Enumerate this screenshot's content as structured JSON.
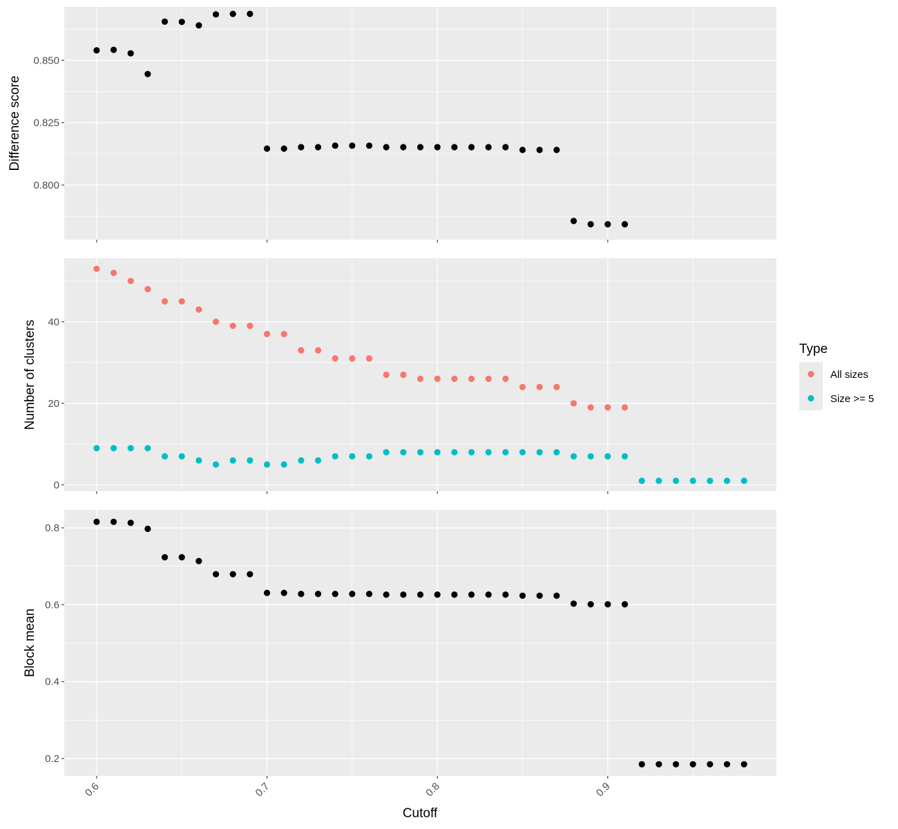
{
  "chart_data": {
    "type": "scatter",
    "x_axis": {
      "label": "Cutoff",
      "range": [
        0.581,
        0.999
      ],
      "ticks": [
        0.6,
        0.7,
        0.8,
        0.9
      ],
      "tick_labels": [
        "0.6",
        "0.7",
        "0.8",
        "0.9"
      ]
    },
    "panels": [
      {
        "id": "difference",
        "ylabel": "Difference score",
        "ylim": [
          0.7781,
          0.8714
        ],
        "yticks": [
          0.8,
          0.825,
          0.85
        ],
        "ytick_labels": [
          "0.800",
          "0.825",
          "0.850"
        ],
        "series": [
          {
            "color": "#000000",
            "points": [
              [
                0.6,
                0.854
              ],
              [
                0.61,
                0.8542
              ],
              [
                0.62,
                0.8528
              ],
              [
                0.63,
                0.8445
              ],
              [
                0.64,
                0.8655
              ],
              [
                0.65,
                0.8654
              ],
              [
                0.66,
                0.864
              ],
              [
                0.67,
                0.8684
              ],
              [
                0.68,
                0.8686
              ],
              [
                0.69,
                0.8686
              ],
              [
                0.7,
                0.8146
              ],
              [
                0.71,
                0.8146
              ],
              [
                0.72,
                0.8152
              ],
              [
                0.73,
                0.8152
              ],
              [
                0.74,
                0.8158
              ],
              [
                0.75,
                0.8158
              ],
              [
                0.76,
                0.8158
              ],
              [
                0.77,
                0.8152
              ],
              [
                0.78,
                0.8152
              ],
              [
                0.79,
                0.8152
              ],
              [
                0.8,
                0.8152
              ],
              [
                0.81,
                0.8152
              ],
              [
                0.82,
                0.8152
              ],
              [
                0.83,
                0.8152
              ],
              [
                0.84,
                0.8152
              ],
              [
                0.85,
                0.8141
              ],
              [
                0.86,
                0.8141
              ],
              [
                0.87,
                0.8141
              ],
              [
                0.88,
                0.7856
              ],
              [
                0.89,
                0.7843
              ],
              [
                0.9,
                0.7843
              ],
              [
                0.91,
                0.7843
              ]
            ]
          }
        ]
      },
      {
        "id": "clusters",
        "ylabel": "Number of clusters",
        "ylim": [
          -1.55,
          55.55
        ],
        "yticks": [
          0,
          20,
          40
        ],
        "ytick_labels": [
          "0",
          "20",
          "40"
        ],
        "series": [
          {
            "name": "All sizes",
            "color": "#F8766D",
            "points": [
              [
                0.6,
                53
              ],
              [
                0.61,
                52
              ],
              [
                0.62,
                50
              ],
              [
                0.63,
                48
              ],
              [
                0.64,
                45
              ],
              [
                0.65,
                45
              ],
              [
                0.66,
                43
              ],
              [
                0.67,
                40
              ],
              [
                0.68,
                39
              ],
              [
                0.69,
                39
              ],
              [
                0.7,
                37
              ],
              [
                0.71,
                37
              ],
              [
                0.72,
                33
              ],
              [
                0.73,
                33
              ],
              [
                0.74,
                31
              ],
              [
                0.75,
                31
              ],
              [
                0.76,
                31
              ],
              [
                0.77,
                27
              ],
              [
                0.78,
                27
              ],
              [
                0.79,
                26
              ],
              [
                0.8,
                26
              ],
              [
                0.81,
                26
              ],
              [
                0.82,
                26
              ],
              [
                0.83,
                26
              ],
              [
                0.84,
                26
              ],
              [
                0.85,
                24
              ],
              [
                0.86,
                24
              ],
              [
                0.87,
                24
              ],
              [
                0.88,
                20
              ],
              [
                0.89,
                19
              ],
              [
                0.9,
                19
              ],
              [
                0.91,
                19
              ]
            ]
          },
          {
            "name": "Size >= 5",
            "color": "#00BFC4",
            "points": [
              [
                0.6,
                9
              ],
              [
                0.61,
                9
              ],
              [
                0.62,
                9
              ],
              [
                0.63,
                9
              ],
              [
                0.64,
                7
              ],
              [
                0.65,
                7
              ],
              [
                0.66,
                6
              ],
              [
                0.67,
                5
              ],
              [
                0.68,
                6
              ],
              [
                0.69,
                6
              ],
              [
                0.7,
                5
              ],
              [
                0.71,
                5
              ],
              [
                0.72,
                6
              ],
              [
                0.73,
                6
              ],
              [
                0.74,
                7
              ],
              [
                0.75,
                7
              ],
              [
                0.76,
                7
              ],
              [
                0.77,
                8
              ],
              [
                0.78,
                8
              ],
              [
                0.79,
                8
              ],
              [
                0.8,
                8
              ],
              [
                0.81,
                8
              ],
              [
                0.82,
                8
              ],
              [
                0.83,
                8
              ],
              [
                0.84,
                8
              ],
              [
                0.85,
                8
              ],
              [
                0.86,
                8
              ],
              [
                0.87,
                8
              ],
              [
                0.88,
                7
              ],
              [
                0.89,
                7
              ],
              [
                0.9,
                7
              ],
              [
                0.91,
                7
              ],
              [
                0.92,
                1
              ],
              [
                0.93,
                1
              ],
              [
                0.94,
                1
              ],
              [
                0.95,
                1
              ],
              [
                0.96,
                1
              ],
              [
                0.97,
                1
              ],
              [
                0.98,
                1
              ]
            ]
          }
        ]
      },
      {
        "id": "blockmean",
        "ylabel": "Block mean",
        "ylim": [
          0.155,
          0.8467
        ],
        "yticks": [
          0.2,
          0.4,
          0.6,
          0.8
        ],
        "ytick_labels": [
          "0.2",
          "0.4",
          "0.6",
          "0.8"
        ],
        "series": [
          {
            "color": "#000000",
            "points": [
              [
                0.6,
                0.8155
              ],
              [
                0.61,
                0.8155
              ],
              [
                0.62,
                0.8128
              ],
              [
                0.63,
                0.7974
              ],
              [
                0.64,
                0.7234
              ],
              [
                0.65,
                0.7234
              ],
              [
                0.66,
                0.7135
              ],
              [
                0.67,
                0.6793
              ],
              [
                0.68,
                0.6793
              ],
              [
                0.69,
                0.6793
              ],
              [
                0.7,
                0.6307
              ],
              [
                0.71,
                0.6307
              ],
              [
                0.72,
                0.6279
              ],
              [
                0.73,
                0.6279
              ],
              [
                0.74,
                0.6279
              ],
              [
                0.75,
                0.6279
              ],
              [
                0.76,
                0.6279
              ],
              [
                0.77,
                0.6262
              ],
              [
                0.78,
                0.6262
              ],
              [
                0.79,
                0.6262
              ],
              [
                0.8,
                0.6262
              ],
              [
                0.81,
                0.6262
              ],
              [
                0.82,
                0.6262
              ],
              [
                0.83,
                0.6262
              ],
              [
                0.84,
                0.6262
              ],
              [
                0.85,
                0.6234
              ],
              [
                0.86,
                0.6234
              ],
              [
                0.87,
                0.6234
              ],
              [
                0.88,
                0.6027
              ],
              [
                0.89,
                0.601
              ],
              [
                0.9,
                0.601
              ],
              [
                0.91,
                0.601
              ],
              [
                0.92,
                0.185
              ],
              [
                0.93,
                0.185
              ],
              [
                0.94,
                0.185
              ],
              [
                0.95,
                0.185
              ],
              [
                0.96,
                0.185
              ],
              [
                0.97,
                0.185
              ],
              [
                0.98,
                0.185
              ]
            ]
          }
        ]
      }
    ],
    "legend": {
      "title": "Type",
      "placement": "right",
      "entries": [
        {
          "label": "All sizes",
          "color": "#F8766D"
        },
        {
          "label": "Size >= 5",
          "color": "#00BFC4"
        }
      ]
    },
    "grid": true
  }
}
